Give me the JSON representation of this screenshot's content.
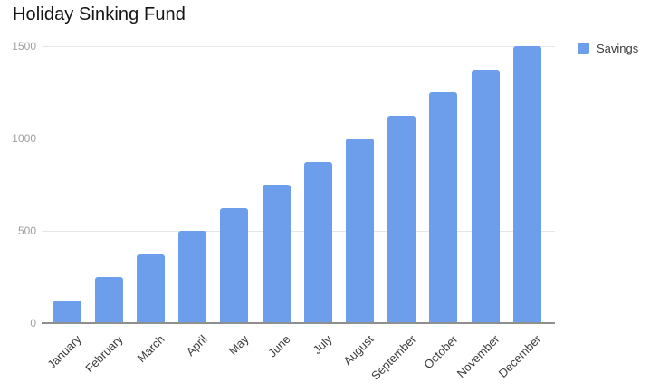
{
  "title": "Holiday Sinking Fund",
  "legend": {
    "label": "Savings",
    "swatch_color": "#6d9eeb",
    "position": "right-top"
  },
  "colors": {
    "bar": "#6d9eeb",
    "gridline": "#e6e6e6",
    "axis_baseline": "#8f8f8f",
    "y_tick_label": "#a0a0a0",
    "x_tick_label": "#3c3c3c",
    "title": "#141414",
    "background": "#ffffff"
  },
  "chart_data": {
    "type": "bar",
    "title": "Holiday Sinking Fund",
    "categories": [
      "January",
      "February",
      "March",
      "April",
      "May",
      "June",
      "July",
      "August",
      "September",
      "October",
      "November",
      "December"
    ],
    "series": [
      {
        "name": "Savings",
        "color": "#6d9eeb",
        "values": [
          125,
          250,
          375,
          500,
          625,
          750,
          875,
          1000,
          1125,
          1250,
          1375,
          1500
        ]
      }
    ],
    "xlabel": "",
    "ylabel": "",
    "ylim": [
      0,
      1500
    ],
    "yticks": [
      0,
      500,
      1000,
      1500
    ],
    "grid": true,
    "legend_position": "right-top"
  }
}
